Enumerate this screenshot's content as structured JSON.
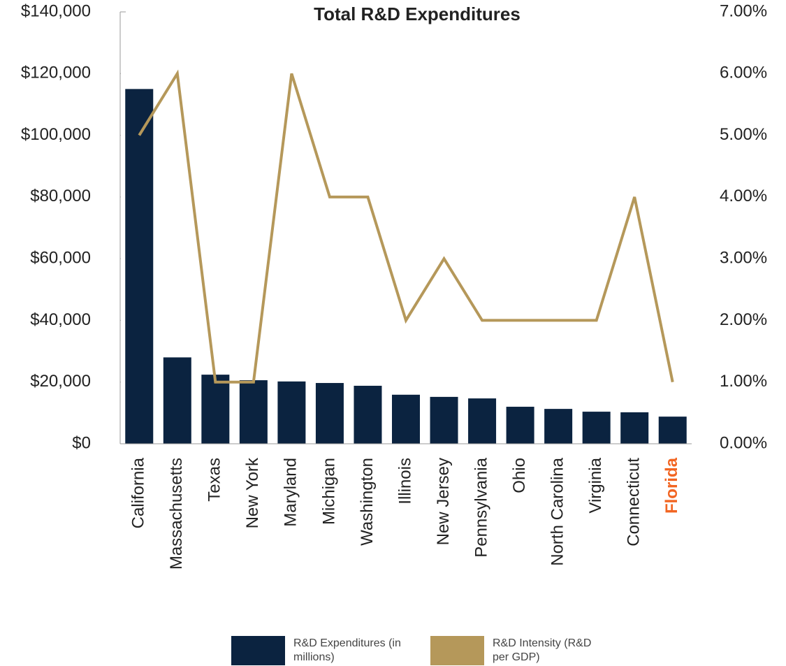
{
  "chart_data": {
    "type": "bar-line",
    "title": "Total R&D Expenditures",
    "categories": [
      "California",
      "Massachusetts",
      "Texas",
      "New York",
      "Maryland",
      "Michigan",
      "Washington",
      "Illinois",
      "New Jersey",
      "Pennsylvania",
      "Ohio",
      "North Carolina",
      "Virginia",
      "Connecticut",
      "Florida"
    ],
    "series": [
      {
        "name": "R&D Expenditures (in millions)",
        "type": "bar",
        "color": "#0b2340",
        "axis": "y",
        "values": [
          115000,
          28000,
          22400,
          20600,
          20200,
          19700,
          18800,
          15900,
          15200,
          14700,
          12000,
          11300,
          10400,
          10200,
          8800
        ]
      },
      {
        "name": "R&D Intensity (R&D per GDP)",
        "type": "line",
        "color": "#b5985a",
        "axis": "y2",
        "values": [
          5.0,
          6.0,
          1.0,
          1.0,
          6.0,
          4.0,
          4.0,
          2.0,
          3.0,
          2.0,
          2.0,
          2.0,
          2.0,
          4.0,
          1.0
        ]
      }
    ],
    "ylim": [
      0,
      140000
    ],
    "yticks": [
      {
        "value": 0,
        "label": "$0"
      },
      {
        "value": 20000,
        "label": "$20,000"
      },
      {
        "value": 40000,
        "label": "$40,000"
      },
      {
        "value": 60000,
        "label": "$60,000"
      },
      {
        "value": 80000,
        "label": "$80,000"
      },
      {
        "value": 100000,
        "label": "$100,000"
      },
      {
        "value": 120000,
        "label": "$120,000"
      },
      {
        "value": 140000,
        "label": "$140,000"
      }
    ],
    "y2lim": [
      0,
      7
    ],
    "y2ticks": [
      {
        "value": 0,
        "label": "0.00%"
      },
      {
        "value": 1,
        "label": "1.00%"
      },
      {
        "value": 2,
        "label": "2.00%"
      },
      {
        "value": 3,
        "label": "3.00%"
      },
      {
        "value": 4,
        "label": "4.00%"
      },
      {
        "value": 5,
        "label": "5.00%"
      },
      {
        "value": 6,
        "label": "6.00%"
      },
      {
        "value": 7,
        "label": "7.00%"
      }
    ],
    "highlight_category": "Florida",
    "highlight_color": "#f26522",
    "legend": "bottom"
  }
}
